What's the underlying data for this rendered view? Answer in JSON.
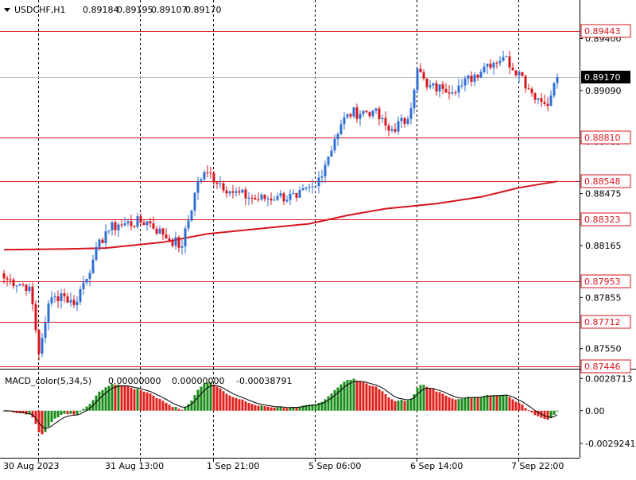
{
  "symbol_header": {
    "symbol": "USDCHF,H1",
    "open": "0.89184",
    "high": "0.89195",
    "low": "0.89107",
    "close": "0.89170"
  },
  "macd_header": {
    "name": "MACD_color(5,34,5)",
    "v1": "0.00000000",
    "v2": "0.00000000",
    "v3": "-0.00038791"
  },
  "price_scale": {
    "ticks": [
      {
        "price": 0.894,
        "label": "0.89400"
      },
      {
        "price": 0.8909,
        "label": "0.89090"
      },
      {
        "price": 0.88785,
        "label": "0.88785"
      },
      {
        "price": 0.88475,
        "label": "0.88475"
      },
      {
        "price": 0.88165,
        "label": "0.88165"
      },
      {
        "price": 0.87855,
        "label": "0.87855"
      },
      {
        "price": 0.8755,
        "label": "0.87550"
      }
    ],
    "range": [
      0.8743,
      0.8963
    ]
  },
  "levels": [
    {
      "price": 0.89443,
      "label": "0.89443"
    },
    {
      "price": 0.8881,
      "label": "0.88810"
    },
    {
      "price": 0.88548,
      "label": "0.88548"
    },
    {
      "price": 0.88323,
      "label": "0.88323"
    },
    {
      "price": 0.87953,
      "label": "0.87953"
    },
    {
      "price": 0.87712,
      "label": "0.87712"
    },
    {
      "price": 0.87446,
      "label": "0.87446"
    }
  ],
  "current_price": {
    "price": 0.8917,
    "label": "0.89170"
  },
  "macd_scale": {
    "ticks": [
      {
        "value": 0.0028713,
        "label": "0.0028713"
      },
      {
        "value": 0.0,
        "label": "0.00"
      },
      {
        "value": -0.0029241,
        "label": "-0.0029241"
      }
    ],
    "range": [
      -0.0042,
      0.0036
    ]
  },
  "time_axis": {
    "labels": [
      "30 Aug 2023",
      "31 Aug 13:00",
      "1 Sep 21:00",
      "5 Sep 06:00",
      "6 Sep 14:00",
      "7 Sep 22:00"
    ]
  },
  "colors": {
    "bull": "#2f6fd4",
    "bear": "#d8141c",
    "level_line": "#d8141c",
    "ma_line": "#d8141c",
    "macd_up": "#1a8c1a",
    "macd_down": "#e0201c",
    "grid": "#000000",
    "current_tag": "#000000"
  },
  "chart_data": {
    "type": "candlestick",
    "timeframe": "H1",
    "x_labels": [
      "30 Aug 2023",
      "31 Aug 13:00",
      "1 Sep 21:00",
      "5 Sep 06:00",
      "6 Sep 14:00",
      "7 Sep 22:00"
    ],
    "anchors": [
      {
        "t": 0,
        "c": 0.8797
      },
      {
        "t": 8,
        "c": 0.8792
      },
      {
        "t": 11,
        "c": 0.8752
      },
      {
        "t": 14,
        "c": 0.8782
      },
      {
        "t": 18,
        "c": 0.8788
      },
      {
        "t": 22,
        "c": 0.8781
      },
      {
        "t": 28,
        "c": 0.8808
      },
      {
        "t": 32,
        "c": 0.8825
      },
      {
        "t": 36,
        "c": 0.8829
      },
      {
        "t": 45,
        "c": 0.8831
      },
      {
        "t": 50,
        "c": 0.8823
      },
      {
        "t": 56,
        "c": 0.8816
      },
      {
        "t": 61,
        "c": 0.8855
      },
      {
        "t": 64,
        "c": 0.886
      },
      {
        "t": 72,
        "c": 0.8848
      },
      {
        "t": 80,
        "c": 0.8844
      },
      {
        "t": 86,
        "c": 0.8846
      },
      {
        "t": 92,
        "c": 0.8845
      },
      {
        "t": 98,
        "c": 0.8852
      },
      {
        "t": 104,
        "c": 0.888
      },
      {
        "t": 108,
        "c": 0.8895
      },
      {
        "t": 116,
        "c": 0.8897
      },
      {
        "t": 121,
        "c": 0.8885
      },
      {
        "t": 127,
        "c": 0.8892
      },
      {
        "t": 130,
        "c": 0.8922
      },
      {
        "t": 133,
        "c": 0.8911
      },
      {
        "t": 138,
        "c": 0.891
      },
      {
        "t": 144,
        "c": 0.8912
      },
      {
        "t": 152,
        "c": 0.8925
      },
      {
        "t": 157,
        "c": 0.8929
      },
      {
        "t": 162,
        "c": 0.892
      },
      {
        "t": 165,
        "c": 0.891
      },
      {
        "t": 170,
        "c": 0.8901
      },
      {
        "t": 172,
        "c": 0.8906
      },
      {
        "t": 174,
        "c": 0.8917
      }
    ],
    "ma": [
      {
        "t": 0,
        "v": 0.8814
      },
      {
        "t": 20,
        "v": 0.88145
      },
      {
        "t": 32,
        "v": 0.8815
      },
      {
        "t": 50,
        "v": 0.88185
      },
      {
        "t": 64,
        "v": 0.88235
      },
      {
        "t": 80,
        "v": 0.88265
      },
      {
        "t": 96,
        "v": 0.88295
      },
      {
        "t": 108,
        "v": 0.88345
      },
      {
        "t": 120,
        "v": 0.88385
      },
      {
        "t": 136,
        "v": 0.88415
      },
      {
        "t": 150,
        "v": 0.88455
      },
      {
        "t": 162,
        "v": 0.8851
      },
      {
        "t": 174,
        "v": 0.88548
      }
    ],
    "macd_range": [
      -0.0029241,
      0.0028713
    ]
  }
}
